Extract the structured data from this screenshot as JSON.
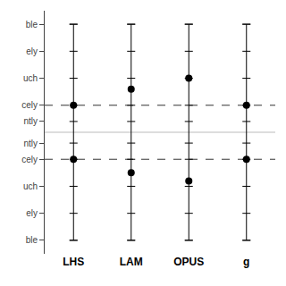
{
  "chart_data": {
    "type": "scatter",
    "categories": [
      "LHS",
      "LAM",
      "OPUS",
      "g"
    ],
    "series": [
      {
        "values": [
          6.0,
          6.6,
          7.0,
          6.0
        ]
      },
      {
        "values": [
          4.0,
          3.5,
          3.2,
          4.0
        ]
      }
    ],
    "error_low": [
      1.0,
      1.0,
      1.0,
      1.0
    ],
    "error_high": [
      9.0,
      9.0,
      9.0,
      9.0
    ],
    "color": "#000000",
    "ylim": [
      0.5,
      9.5
    ],
    "yticks": [
      {
        "value": 1,
        "label": "ble"
      },
      {
        "value": 2,
        "label": "ely"
      },
      {
        "value": 3,
        "label": "uch"
      },
      {
        "value": 4,
        "label": "cely"
      },
      {
        "value": 4.6,
        "label": "ntly"
      },
      {
        "value": 5.4,
        "label": "ntly"
      },
      {
        "value": 6,
        "label": "cely"
      },
      {
        "value": 7,
        "label": "uch"
      },
      {
        "value": 8,
        "label": "ely"
      },
      {
        "value": 9,
        "label": "ble"
      }
    ],
    "reference_lines": [
      {
        "y": 6.0,
        "color": "#333333",
        "line_style": "dashed"
      },
      {
        "y": 4.0,
        "color": "#333333",
        "line_style": "dashed"
      },
      {
        "y": 5.0,
        "color": "#bbbbbb",
        "line_style": "solid"
      }
    ],
    "grid": false
  }
}
